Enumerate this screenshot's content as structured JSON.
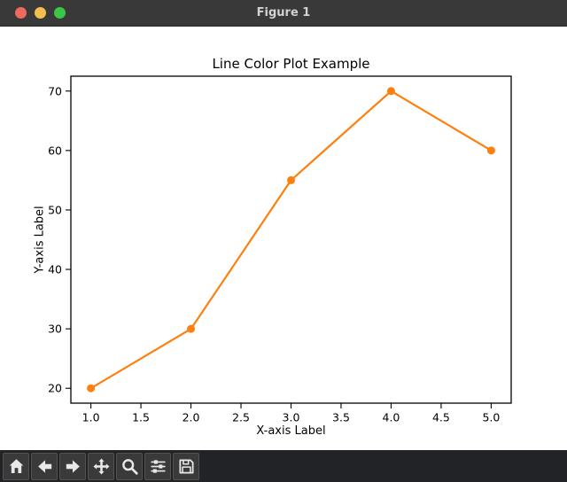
{
  "window": {
    "title": "Figure 1",
    "titlebar_bg": "#393939",
    "traffic_lights": {
      "close": "#ed6a5e",
      "minimize": "#f5bf4f",
      "zoom": "#3bc648"
    }
  },
  "chart_data": {
    "type": "line",
    "title": "Line Color Plot Example",
    "xlabel": "X-axis Label",
    "ylabel": "Y-axis Label",
    "x": [
      1,
      2,
      3,
      4,
      5
    ],
    "y": [
      20,
      30,
      55,
      70,
      60
    ],
    "xticks": [
      1.0,
      1.5,
      2.0,
      2.5,
      3.0,
      3.5,
      4.0,
      4.5,
      5.0
    ],
    "yticks": [
      20,
      30,
      40,
      50,
      60,
      70
    ],
    "xlim": [
      0.8,
      5.2
    ],
    "ylim": [
      17.5,
      72.5
    ],
    "line_color": "#ff7f0e",
    "marker": "o",
    "grid": false,
    "legend_position": "none",
    "background": "#ffffff",
    "spine_color": "#000000",
    "text_color": "#000000"
  },
  "toolbar": {
    "buttons": [
      {
        "name": "home",
        "icon": "home-icon"
      },
      {
        "name": "back",
        "icon": "arrow-left-icon"
      },
      {
        "name": "forward",
        "icon": "arrow-right-icon"
      },
      {
        "name": "pan",
        "icon": "move-arrows-icon"
      },
      {
        "name": "zoom",
        "icon": "magnifier-icon"
      },
      {
        "name": "subplots",
        "icon": "sliders-icon"
      },
      {
        "name": "save",
        "icon": "floppy-disk-icon"
      }
    ]
  }
}
